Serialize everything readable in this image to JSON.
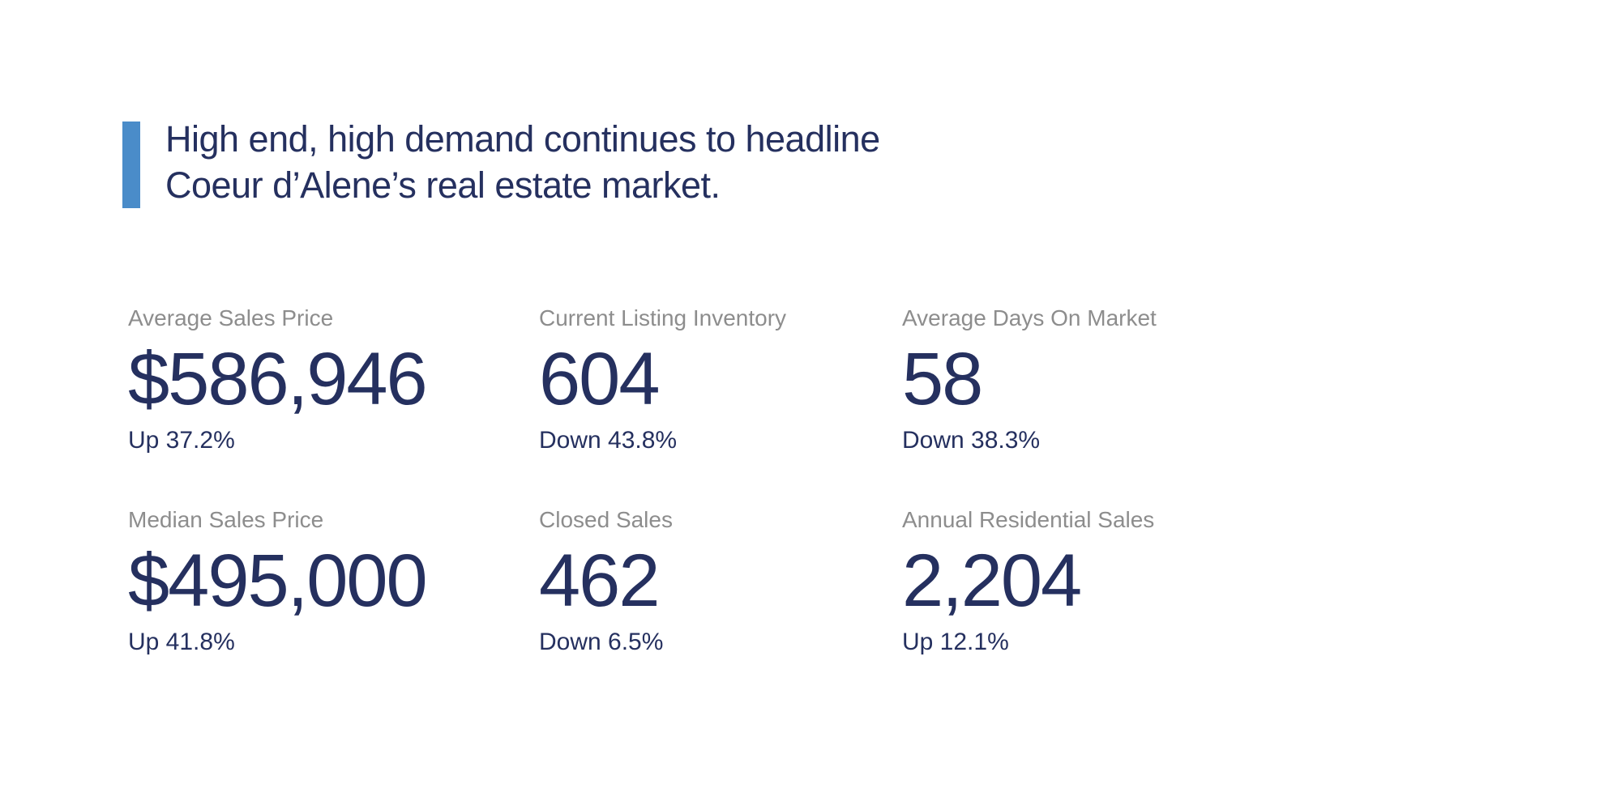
{
  "colors": {
    "navy": "#25305f",
    "accent_blue": "#4a8cc9",
    "label_gray": "#8d8d8d",
    "background": "#ffffff"
  },
  "headline": {
    "line1": "High end, high demand continues to headline",
    "line2": "Coeur d’Alene’s real estate market."
  },
  "stats": {
    "items": [
      {
        "label": "Average Sales Price",
        "value": "$586,946",
        "change": "Up 37.2%"
      },
      {
        "label": "Current Listing Inventory",
        "value": "604",
        "change": "Down 43.8%"
      },
      {
        "label": "Average Days On Market",
        "value": "58",
        "change": "Down 38.3%"
      },
      {
        "label": "Median Sales Price",
        "value": "$495,000",
        "change": "Up 41.8%"
      },
      {
        "label": "Closed Sales",
        "value": "462",
        "change": "Down 6.5%"
      },
      {
        "label": "Annual Residential Sales",
        "value": "2,204",
        "change": "Up 12.1%"
      }
    ]
  }
}
